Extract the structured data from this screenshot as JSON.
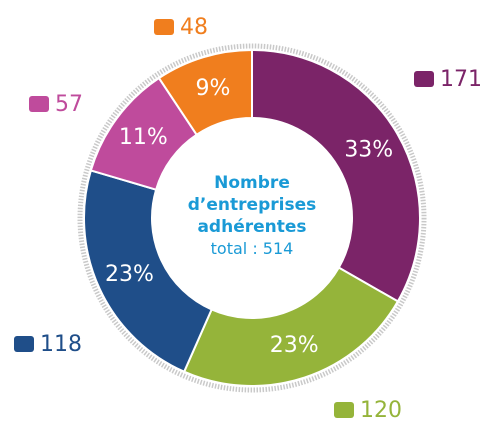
{
  "chart_data": {
    "type": "donut",
    "title": "Nombre d’entreprises adhérentes",
    "subtitle": "total : 514",
    "categories": [
      null,
      null,
      null,
      null,
      null
    ],
    "series": [
      {
        "name": null,
        "values": [
          171,
          120,
          118,
          57,
          48
        ],
        "colors": [
          "#7b2468",
          "#95b43a",
          "#1f4e89",
          "#bf4b9c",
          "#f07e1e"
        ]
      }
    ],
    "slice_labels": [
      "33%",
      "23%",
      "23%",
      "11%",
      "9%"
    ]
  }
}
